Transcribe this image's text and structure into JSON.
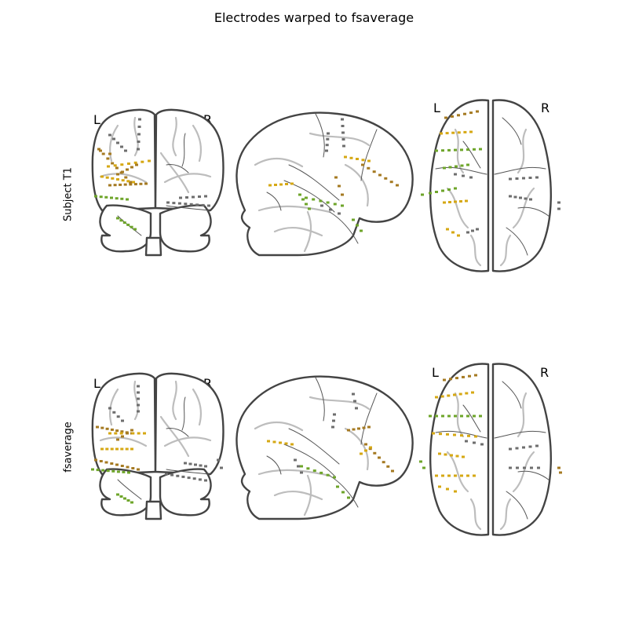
{
  "figure": {
    "title": "Electrodes warped to fsaverage",
    "rows": [
      {
        "label": "Subject T1",
        "coronal_left": "L",
        "coronal_right": "R",
        "axial_left": "L",
        "axial_right": "R"
      },
      {
        "label": "fsaverage",
        "coronal_left": "L",
        "coronal_right": "R",
        "axial_left": "L",
        "axial_right": "R"
      }
    ],
    "views": [
      "coronal",
      "sagittal",
      "axial"
    ],
    "electrode_colors": {
      "dark_gold": "#a57a22",
      "gold": "#d6a814",
      "green": "#6ea52a",
      "gray": "#6e6e6e"
    }
  }
}
